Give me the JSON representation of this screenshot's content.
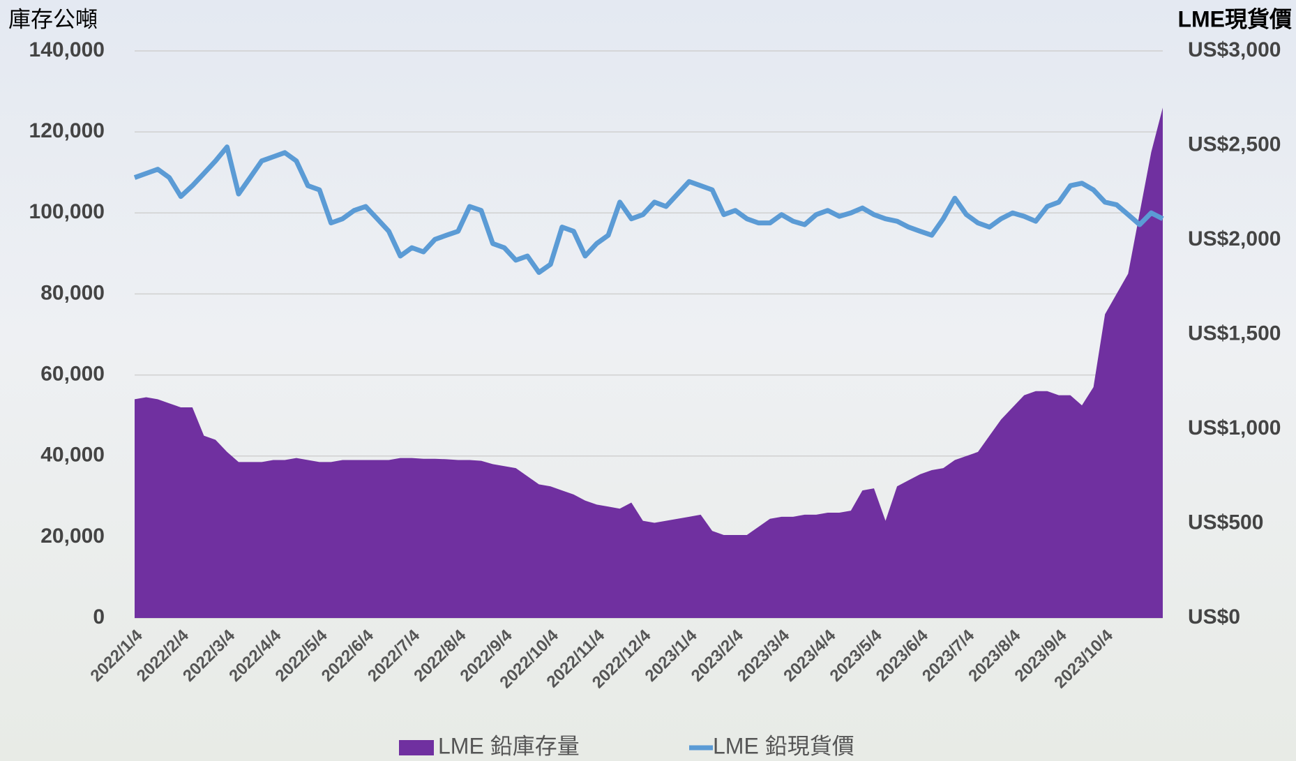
{
  "chart_data": {
    "type": "area-line",
    "y_label": "庫存公噸",
    "y2_label": "LME現貨價",
    "categories": [
      "2022/1/4",
      null,
      null,
      null,
      "2022/2/4",
      null,
      null,
      null,
      "2022/3/4",
      null,
      null,
      null,
      "2022/4/4",
      null,
      null,
      null,
      "2022/5/4",
      null,
      null,
      null,
      "2022/6/4",
      null,
      null,
      null,
      "2022/7/4",
      null,
      null,
      null,
      "2022/8/4",
      null,
      null,
      null,
      "2022/9/4",
      null,
      null,
      null,
      "2022/10/4",
      null,
      null,
      null,
      "2022/11/4",
      null,
      null,
      null,
      "2022/12/4",
      null,
      null,
      null,
      "2023/1/4",
      null,
      null,
      null,
      "2023/2/4",
      null,
      null,
      null,
      "2023/3/4",
      null,
      null,
      null,
      "2023/4/4",
      null,
      null,
      null,
      "2023/5/4",
      null,
      null,
      null,
      "2023/6/4",
      null,
      null,
      null,
      "2023/7/4",
      null,
      null,
      null,
      "2023/8/4",
      null,
      null,
      null,
      "2023/9/4",
      null,
      null,
      null,
      "2023/10/4",
      null,
      null,
      null,
      null,
      null
    ],
    "series": [
      {
        "name": "LME 鉛庫存量",
        "color": "#7030a0",
        "kind": "area",
        "axis": "y",
        "values": [
          54000,
          54500,
          54000,
          53000,
          52000,
          52000,
          45000,
          44000,
          41000,
          38500,
          38500,
          38500,
          39000,
          39000,
          39500,
          39000,
          38500,
          38500,
          39000,
          39000,
          39000,
          39000,
          39000,
          39500,
          39500,
          39300,
          39300,
          39200,
          39000,
          39000,
          38800,
          38000,
          37500,
          37000,
          35000,
          33000,
          32500,
          31500,
          30500,
          29000,
          28000,
          27500,
          27000,
          28500,
          24000,
          23500,
          24000,
          24500,
          25000,
          25500,
          21500,
          20500,
          20500,
          20500,
          22500,
          24500,
          25000,
          25000,
          25500,
          25500,
          26000,
          26000,
          26500,
          31500,
          32000,
          24000,
          32500,
          34000,
          35500,
          36500,
          37000,
          39000,
          40000,
          41000,
          45000,
          49000,
          52000,
          55000,
          56000,
          56000,
          55000,
          55000,
          52500,
          57000,
          75000,
          80000,
          85000,
          100000,
          115000,
          126000
        ]
      },
      {
        "name": "LME 鉛現貨價",
        "color": "#5b9bd5",
        "kind": "line",
        "axis": "y2",
        "values": [
          2330,
          2352,
          2374,
          2330,
          2230,
          2287,
          2352,
          2418,
          2492,
          2243,
          2330,
          2418,
          2440,
          2462,
          2418,
          2287,
          2265,
          2090,
          2112,
          2156,
          2177,
          2112,
          2046,
          1915,
          1959,
          1937,
          2003,
          2025,
          2046,
          2177,
          2156,
          1981,
          1959,
          1893,
          1915,
          1828,
          1871,
          2068,
          2046,
          1915,
          1981,
          2025,
          2200,
          2112,
          2134,
          2200,
          2177,
          2243,
          2309,
          2287,
          2265,
          2134,
          2156,
          2112,
          2090,
          2090,
          2134,
          2099,
          2081,
          2134,
          2156,
          2125,
          2143,
          2169,
          2134,
          2112,
          2099,
          2068,
          2046,
          2025,
          2112,
          2221,
          2134,
          2090,
          2068,
          2112,
          2143,
          2125,
          2099,
          2177,
          2200,
          2287,
          2300,
          2265,
          2200,
          2186,
          2134,
          2081,
          2143,
          2112
        ]
      }
    ],
    "ylim": [
      0,
      140000
    ],
    "yticks": [
      0,
      {
        "value": 20000,
        "label": "20,000"
      },
      {
        "value": 40000,
        "label": "40,000"
      },
      {
        "value": 60000,
        "label": "60,000"
      },
      {
        "value": 80000,
        "label": "80,000"
      },
      {
        "value": 100000,
        "label": "100,000"
      },
      {
        "value": 120000,
        "label": "120,000"
      },
      {
        "value": 140000,
        "label": "140,000"
      }
    ],
    "y2lim": [
      0,
      3000
    ],
    "y2ticks": [
      {
        "value": 0,
        "label": "US$0"
      },
      {
        "value": 500,
        "label": "US$500"
      },
      {
        "value": 1000,
        "label": "US$1,000"
      },
      {
        "value": 1500,
        "label": "US$1,500"
      },
      {
        "value": 2000,
        "label": "US$2,000"
      },
      {
        "value": 2500,
        "label": "US$2,500"
      },
      {
        "value": 3000,
        "label": "US$3,000"
      }
    ],
    "grid": true,
    "legend": "bottom"
  }
}
